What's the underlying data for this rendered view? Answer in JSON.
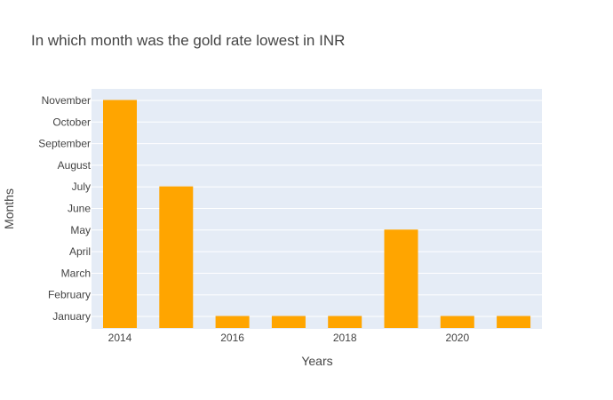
{
  "chart_data": {
    "type": "bar",
    "title": "In which month was the gold rate lowest in INR",
    "xlabel": "Years",
    "ylabel": "Months",
    "x": [
      2014,
      2015,
      2016,
      2017,
      2018,
      2019,
      2020,
      2021
    ],
    "values": [
      "November",
      "July",
      "January",
      "January",
      "January",
      "May",
      "January",
      "January"
    ],
    "categories_y": [
      "January",
      "February",
      "March",
      "April",
      "May",
      "June",
      "July",
      "August",
      "September",
      "October",
      "November"
    ],
    "x_ticks": [
      2014,
      2016,
      2018,
      2020
    ],
    "bar_color": "#FFA500",
    "plot_bg": "#E5ECF6",
    "grid": true
  }
}
